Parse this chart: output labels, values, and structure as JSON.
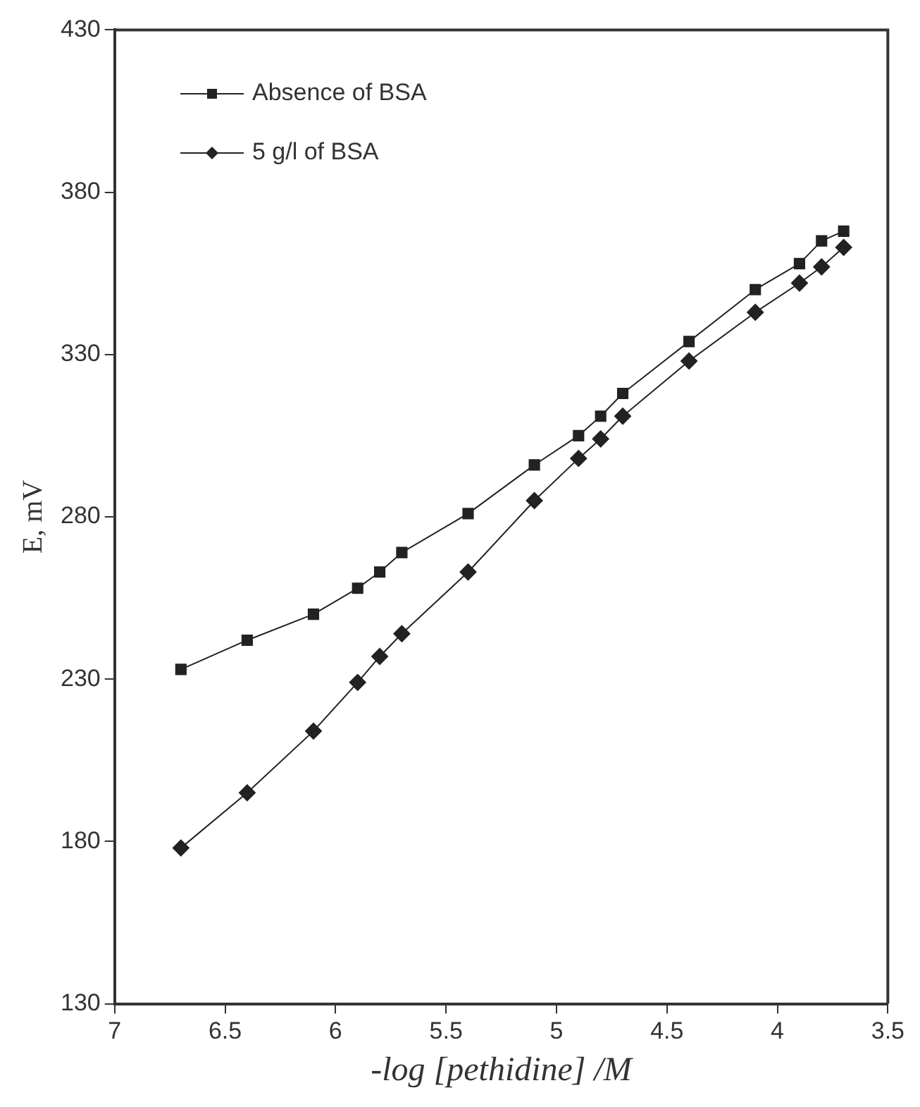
{
  "chart_data": {
    "type": "line",
    "xlabel": "-log [pethidine] /M",
    "ylabel": "E, mV",
    "xlim": [
      7,
      3.5
    ],
    "xticks": [
      7,
      6.5,
      6,
      5.5,
      5,
      4.5,
      4,
      3.5
    ],
    "ylim": [
      130,
      430
    ],
    "yticks": [
      130,
      180,
      230,
      280,
      330,
      380,
      430
    ],
    "grid": false,
    "legend": "top left",
    "series": [
      {
        "name": "Absence of BSA",
        "color": "#222222",
        "marker": "square",
        "x": [
          6.7,
          6.4,
          6.1,
          5.9,
          5.8,
          5.7,
          5.4,
          5.1,
          4.9,
          4.8,
          4.7,
          4.4,
          4.1,
          3.9,
          3.8,
          3.7
        ],
        "values": [
          233,
          242,
          250,
          258,
          263,
          269,
          281,
          296,
          305,
          311,
          318,
          334,
          350,
          358,
          365,
          368
        ]
      },
      {
        "name": "5 g/l of BSA",
        "color": "#222222",
        "marker": "diamond",
        "x": [
          6.7,
          6.4,
          6.1,
          5.9,
          5.8,
          5.7,
          5.4,
          5.1,
          4.9,
          4.8,
          4.7,
          4.4,
          4.1,
          3.9,
          3.8,
          3.7
        ],
        "values": [
          178,
          195,
          214,
          229,
          237,
          244,
          263,
          285,
          298,
          304,
          311,
          328,
          343,
          352,
          357,
          363
        ]
      }
    ]
  }
}
